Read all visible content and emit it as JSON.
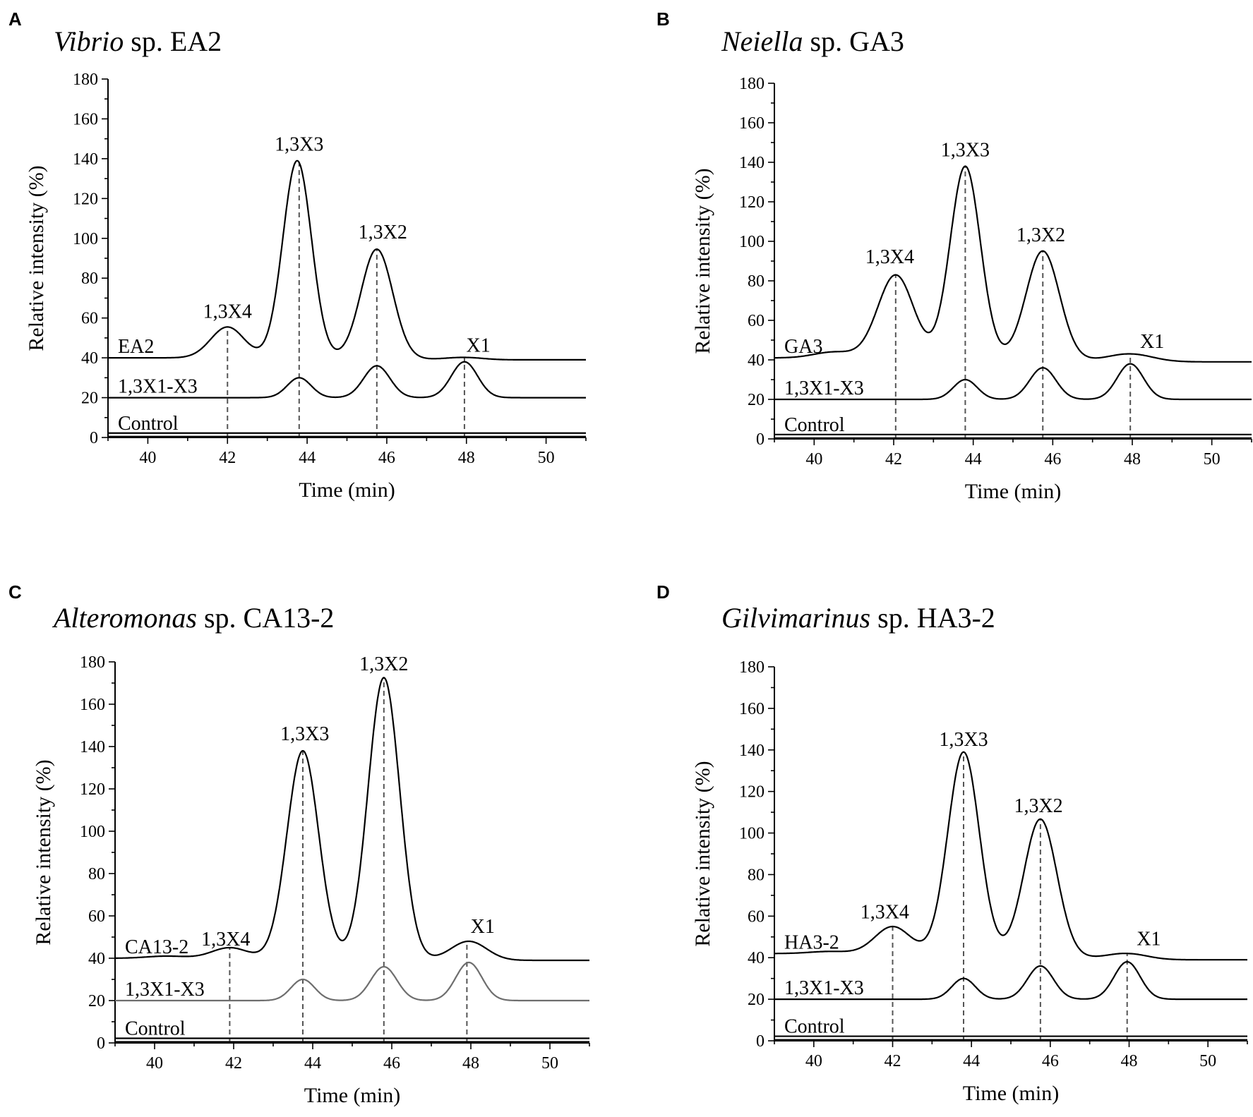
{
  "colors": {
    "trace": "#000000",
    "gray_trace": "#6e6e6e",
    "marker": "#555555"
  },
  "chart_data": [
    {
      "letter": "A",
      "title_italic": "Vibrio",
      "title_rest": " sp. EA2",
      "type": "line",
      "xlabel": "Time (min)",
      "ylabel": "Relative intensity (%)",
      "xlim": [
        39,
        51
      ],
      "ylim": [
        0,
        180
      ],
      "xticks": [
        40,
        42,
        44,
        46,
        48,
        50
      ],
      "yticks": [
        0,
        20,
        40,
        60,
        80,
        100,
        120,
        140,
        160,
        180
      ],
      "markers": [
        42.0,
        43.8,
        45.75,
        47.95
      ],
      "series": [
        {
          "name": "EA2",
          "baseline": 40,
          "tail": 39,
          "gray": false,
          "peaks": [
            [
              42.0,
              15.5,
              0.42
            ],
            [
              43.75,
              99,
              0.36
            ],
            [
              45.75,
              55,
              0.4
            ],
            [
              47.95,
              1.2,
              0.45
            ]
          ]
        },
        {
          "name": "1,3X1-X3",
          "baseline": 20,
          "tail": 20,
          "gray": false,
          "peaks": [
            [
              43.8,
              10,
              0.3
            ],
            [
              45.75,
              16,
              0.33
            ],
            [
              47.95,
              18,
              0.33
            ]
          ]
        },
        {
          "name": "Control",
          "baseline": 1.5,
          "tail": 1.5,
          "gray": false,
          "double": true,
          "peaks": []
        }
      ],
      "peak_labels": [
        {
          "text": "1,3X4",
          "x": 42.0,
          "y": 60
        },
        {
          "text": "1,3X3",
          "x": 43.8,
          "y": 144
        },
        {
          "text": "1,3X2",
          "x": 45.9,
          "y": 100
        },
        {
          "text": "X1",
          "x": 48.3,
          "y": 43
        }
      ]
    },
    {
      "letter": "B",
      "title_italic": "Neiella",
      "title_rest": " sp. GA3",
      "type": "line",
      "xlabel": "Time (min)",
      "ylabel": "Relative intensity (%)",
      "xlim": [
        39,
        51
      ],
      "ylim": [
        0,
        180
      ],
      "xticks": [
        40,
        42,
        44,
        46,
        48,
        50
      ],
      "yticks": [
        0,
        20,
        40,
        60,
        80,
        100,
        120,
        140,
        160,
        180
      ],
      "markers": [
        42.05,
        43.8,
        45.75,
        47.95
      ],
      "series": [
        {
          "name": "GA3",
          "baseline": 41,
          "tail": 39,
          "gray": false,
          "peaks": [
            [
              40.5,
              3,
              0.5
            ],
            [
              42.05,
              42,
              0.45
            ],
            [
              43.8,
              97,
              0.38
            ],
            [
              45.75,
              55,
              0.42
            ],
            [
              47.95,
              4,
              0.55
            ]
          ]
        },
        {
          "name": "1,3X1-X3",
          "baseline": 20,
          "tail": 20,
          "gray": false,
          "peaks": [
            [
              43.8,
              10,
              0.3
            ],
            [
              45.75,
              16,
              0.33
            ],
            [
              47.95,
              18,
              0.33
            ]
          ]
        },
        {
          "name": "Control",
          "baseline": 1.5,
          "tail": 1.5,
          "gray": false,
          "double": true,
          "peaks": []
        }
      ],
      "peak_labels": [
        {
          "text": "1,3X4",
          "x": 41.9,
          "y": 89
        },
        {
          "text": "1,3X3",
          "x": 43.8,
          "y": 143
        },
        {
          "text": "1,3X2",
          "x": 45.7,
          "y": 100
        },
        {
          "text": "X1",
          "x": 48.5,
          "y": 46
        }
      ]
    },
    {
      "letter": "C",
      "title_italic": "Alteromonas",
      "title_rest": " sp. CA13-2",
      "type": "line",
      "xlabel": "Time (min)",
      "ylabel": "Relative intensity (%)",
      "xlim": [
        39,
        51
      ],
      "ylim": [
        0,
        180
      ],
      "xticks": [
        40,
        42,
        44,
        46,
        48,
        50
      ],
      "yticks": [
        0,
        20,
        40,
        60,
        80,
        100,
        120,
        140,
        160,
        180
      ],
      "markers": [
        41.9,
        43.75,
        45.8,
        47.9
      ],
      "series": [
        {
          "name": "CA13-2",
          "baseline": 40,
          "tail": 39,
          "gray": false,
          "peaks": [
            [
              40.3,
              1,
              0.5
            ],
            [
              41.9,
              5,
              0.45
            ],
            [
              43.75,
              98,
              0.4
            ],
            [
              45.8,
              133,
              0.4
            ],
            [
              47.95,
              9,
              0.45
            ]
          ]
        },
        {
          "name": "1,3X1-X3",
          "baseline": 20,
          "tail": 20,
          "gray": true,
          "peaks": [
            [
              43.75,
              10,
              0.3
            ],
            [
              45.8,
              16,
              0.33
            ],
            [
              47.95,
              18,
              0.33
            ]
          ]
        },
        {
          "name": "Control",
          "baseline": 1.5,
          "tail": 1.5,
          "gray": false,
          "double": true,
          "peaks": []
        }
      ],
      "peak_labels": [
        {
          "text": "1,3X4",
          "x": 41.8,
          "y": 46
        },
        {
          "text": "1,3X3",
          "x": 43.8,
          "y": 143
        },
        {
          "text": "1,3X2",
          "x": 45.8,
          "y": 176
        },
        {
          "text": "X1",
          "x": 48.3,
          "y": 52
        }
      ]
    },
    {
      "letter": "D",
      "title_italic": "Gilvimarinus",
      "title_rest": " sp. HA3-2",
      "type": "line",
      "xlabel": "Time (min)",
      "ylabel": "Relative intensity (%)",
      "xlim": [
        39,
        51
      ],
      "ylim": [
        0,
        180
      ],
      "xticks": [
        40,
        42,
        44,
        46,
        48,
        50
      ],
      "yticks": [
        0,
        20,
        40,
        60,
        80,
        100,
        120,
        140,
        160,
        180
      ],
      "markers": [
        42.0,
        43.8,
        45.75,
        47.95
      ],
      "series": [
        {
          "name": "HA3-2",
          "baseline": 42,
          "tail": 39,
          "gray": false,
          "peaks": [
            [
              40.4,
              1,
              0.5
            ],
            [
              42.0,
              13,
              0.45
            ],
            [
              43.8,
              97,
              0.4
            ],
            [
              45.75,
              66,
              0.42
            ],
            [
              47.95,
              3,
              0.5
            ]
          ]
        },
        {
          "name": "1,3X1-X3",
          "baseline": 20,
          "tail": 20,
          "gray": false,
          "peaks": [
            [
              43.8,
              10,
              0.3
            ],
            [
              45.75,
              16,
              0.33
            ],
            [
              47.95,
              18,
              0.33
            ]
          ]
        },
        {
          "name": "Control",
          "baseline": 1.5,
          "tail": 1.5,
          "gray": false,
          "double": true,
          "peaks": []
        }
      ],
      "peak_labels": [
        {
          "text": "1,3X4",
          "x": 41.8,
          "y": 59
        },
        {
          "text": "1,3X3",
          "x": 43.8,
          "y": 142
        },
        {
          "text": "1,3X2",
          "x": 45.7,
          "y": 110
        },
        {
          "text": "X1",
          "x": 48.5,
          "y": 46
        }
      ]
    }
  ]
}
